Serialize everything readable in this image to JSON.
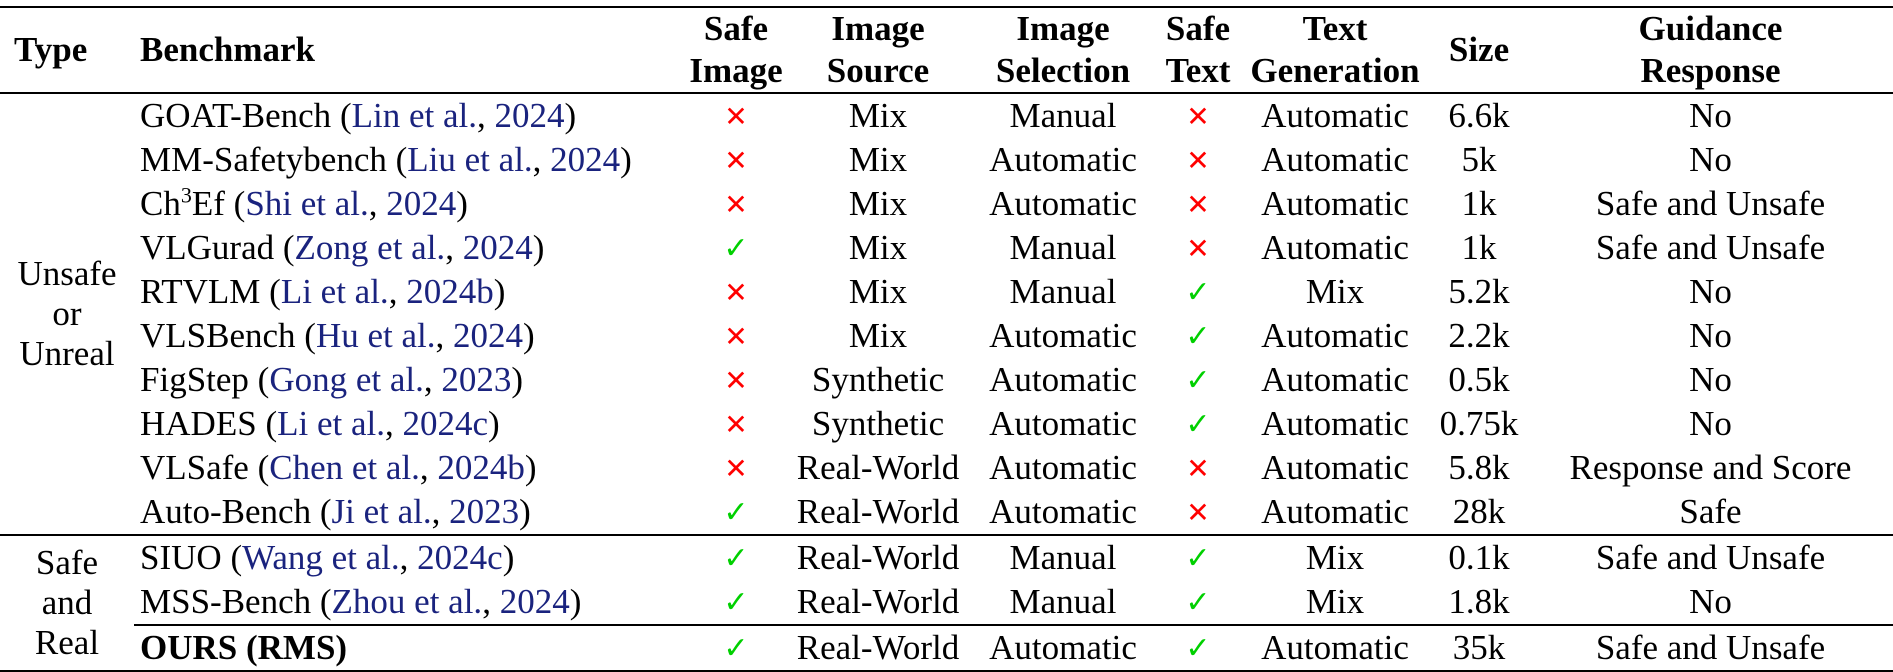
{
  "headers": {
    "type": "Type",
    "benchmark": "Benchmark",
    "safe_image": [
      "Safe",
      "Image"
    ],
    "image_source": [
      "Image",
      "Source"
    ],
    "image_selection": [
      "Image",
      "Selection"
    ],
    "safe_text": [
      "Safe",
      "Text"
    ],
    "text_generation": [
      "Text",
      "Generation"
    ],
    "size": "Size",
    "guidance_response": [
      "Guidance",
      "Response"
    ]
  },
  "groups": [
    {
      "label": [
        "Unsafe",
        "or",
        "Unreal"
      ]
    },
    {
      "label": [
        "Safe",
        "and",
        "Real"
      ]
    }
  ],
  "symbols": {
    "cross": "✕",
    "check": "✓"
  },
  "colors": {
    "cite": "#1a237e",
    "cross": "#ff0000",
    "check": "#00d000"
  },
  "rows": [
    {
      "name": "GOAT-Bench",
      "cite_author": "Lin et al.",
      "cite_year": "2024",
      "safe_image": "cross",
      "image_source": "Mix",
      "image_selection": "Manual",
      "safe_text": "cross",
      "text_generation": "Automatic",
      "size": "6.6k",
      "guidance": "No"
    },
    {
      "name": "MM-Safetybench",
      "cite_author": "Liu et al.",
      "cite_year": "2024",
      "safe_image": "cross",
      "image_source": "Mix",
      "image_selection": "Automatic",
      "safe_text": "cross",
      "text_generation": "Automatic",
      "size": "5k",
      "guidance": "No"
    },
    {
      "name": "Ch",
      "name_sup": "3",
      "name_suffix": "Ef",
      "cite_author": "Shi et al.",
      "cite_year": "2024",
      "safe_image": "cross",
      "image_source": "Mix",
      "image_selection": "Automatic",
      "safe_text": "cross",
      "text_generation": "Automatic",
      "size": "1k",
      "guidance": "Safe and Unsafe"
    },
    {
      "name": "VLGurad",
      "cite_author": "Zong et al.",
      "cite_year": "2024",
      "safe_image": "check",
      "image_source": "Mix",
      "image_selection": "Manual",
      "safe_text": "cross",
      "text_generation": "Automatic",
      "size": "1k",
      "guidance": "Safe and Unsafe"
    },
    {
      "name": "RTVLM",
      "cite_author": "Li et al.",
      "cite_year": "2024b",
      "safe_image": "cross",
      "image_source": "Mix",
      "image_selection": "Manual",
      "safe_text": "check",
      "text_generation": "Mix",
      "size": "5.2k",
      "guidance": "No"
    },
    {
      "name": "VLSBench",
      "cite_author": "Hu et al.",
      "cite_year": "2024",
      "safe_image": "cross",
      "image_source": "Mix",
      "image_selection": "Automatic",
      "safe_text": "check",
      "text_generation": "Automatic",
      "size": "2.2k",
      "guidance": "No"
    },
    {
      "name": "FigStep",
      "cite_author": "Gong et al.",
      "cite_year": "2023",
      "safe_image": "cross",
      "image_source": "Synthetic",
      "image_selection": "Automatic",
      "safe_text": "check",
      "text_generation": "Automatic",
      "size": "0.5k",
      "guidance": "No"
    },
    {
      "name": "HADES",
      "cite_author": "Li et al.",
      "cite_year": "2024c",
      "safe_image": "cross",
      "image_source": "Synthetic",
      "image_selection": "Automatic",
      "safe_text": "check",
      "text_generation": "Automatic",
      "size": "0.75k",
      "guidance": "No"
    },
    {
      "name": "VLSafe",
      "cite_author": "Chen et al.",
      "cite_year": "2024b",
      "safe_image": "cross",
      "image_source": "Real-World",
      "image_selection": "Automatic",
      "safe_text": "cross",
      "text_generation": "Automatic",
      "size": "5.8k",
      "guidance": "Response and Score"
    },
    {
      "name": "Auto-Bench",
      "cite_author": "Ji et al.",
      "cite_year": "2023",
      "safe_image": "check",
      "image_source": "Real-World",
      "image_selection": "Automatic",
      "safe_text": "cross",
      "text_generation": "Automatic",
      "size": "28k",
      "guidance": "Safe"
    },
    {
      "name": "SIUO",
      "cite_author": "Wang et al.",
      "cite_year": "2024c",
      "safe_image": "check",
      "image_source": "Real-World",
      "image_selection": "Manual",
      "safe_text": "check",
      "text_generation": "Mix",
      "size": "0.1k",
      "guidance": "Safe and Unsafe"
    },
    {
      "name": "MSS-Bench",
      "cite_author": "Zhou et al.",
      "cite_year": "2024",
      "safe_image": "check",
      "image_source": "Real-World",
      "image_selection": "Manual",
      "safe_text": "check",
      "text_generation": "Mix",
      "size": "1.8k",
      "guidance": "No"
    },
    {
      "name": "OURS (RMS)",
      "bold": true,
      "safe_image": "check",
      "image_source": "Real-World",
      "image_selection": "Automatic",
      "safe_text": "check",
      "text_generation": "Automatic",
      "size": "35k",
      "guidance": "Safe and Unsafe"
    }
  ]
}
